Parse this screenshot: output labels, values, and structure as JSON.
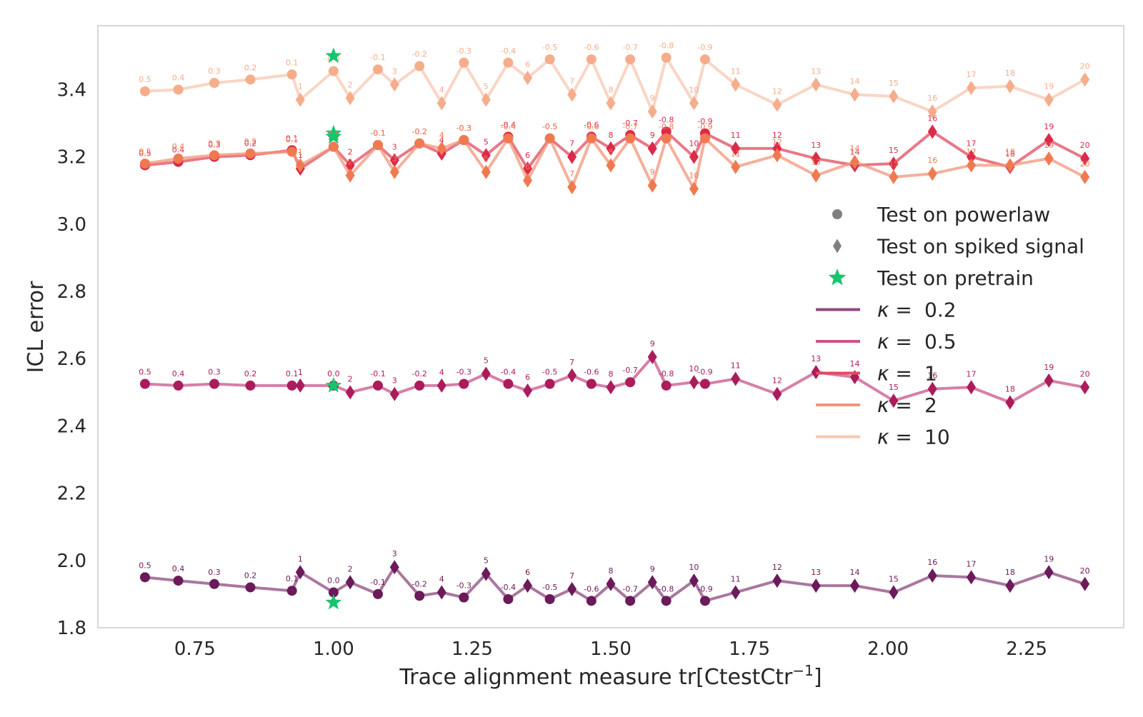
{
  "chart_data": {
    "type": "line",
    "xlabel": "Trace alignment measure tr[CtestCtr",
    "xlabel_sup": "−1",
    "xlabel_end": "]",
    "ylabel": "ICL error",
    "xlim": [
      0.575,
      2.425
    ],
    "ylim": [
      1.8,
      3.59
    ],
    "xticks": [
      0.75,
      1.0,
      1.25,
      1.5,
      1.75,
      2.0,
      2.25
    ],
    "xtick_labels": [
      "0.75",
      "1.00",
      "1.25",
      "1.50",
      "1.75",
      "2.00",
      "2.25"
    ],
    "yticks": [
      1.8,
      2.0,
      2.2,
      2.4,
      2.6,
      2.8,
      3.0,
      3.2,
      3.4
    ],
    "ytick_labels": [
      "1.8",
      "2.0",
      "2.2",
      "2.4",
      "2.6",
      "2.8",
      "3.0",
      "3.2",
      "3.4"
    ],
    "grid": false,
    "legend_position": "right",
    "legend": {
      "markers": [
        {
          "symbol": "circle",
          "label": "Test on powerlaw",
          "color": "#808080"
        },
        {
          "symbol": "diamond",
          "label": "Test on spiked signal",
          "color": "#808080"
        },
        {
          "symbol": "star",
          "label": "Test on pretrain",
          "color": "#18c46e"
        }
      ],
      "lines": [
        {
          "prefix": "κ =",
          "value": "0.2",
          "color": "#8e4a7e"
        },
        {
          "prefix": "κ =",
          "value": "0.5",
          "color": "#c9548a"
        },
        {
          "prefix": "κ =",
          "value": "1",
          "color": "#e34a5e"
        },
        {
          "prefix": "κ =",
          "value": "2",
          "color": "#f0967a"
        },
        {
          "prefix": "κ =",
          "value": "10",
          "color": "#f8c7b0"
        }
      ]
    },
    "powerlaw_labels": [
      "0.5",
      "0.4",
      "0.3",
      "0.2",
      "0.1",
      "0.0",
      "-0.1",
      "-0.2",
      "-0.3",
      "-0.4",
      "-0.5",
      "-0.6",
      "-0.7",
      "-0.8",
      "-0.9"
    ],
    "spiked_labels": [
      "1",
      "2",
      "3",
      "4",
      "5",
      "6",
      "7",
      "8",
      "9",
      "10",
      "11",
      "12",
      "13",
      "14",
      "15",
      "16",
      "17",
      "18",
      "19",
      "20"
    ],
    "powerlaw_x": [
      0.66,
      0.72,
      0.785,
      0.85,
      0.925,
      1.0,
      1.08,
      1.155,
      1.235,
      1.315,
      1.39,
      1.465,
      1.535,
      1.6,
      1.67
    ],
    "spiked_x": [
      0.94,
      1.03,
      1.11,
      1.195,
      1.275,
      1.35,
      1.43,
      1.5,
      1.575,
      1.65,
      1.725,
      1.8,
      1.87,
      1.94,
      2.01,
      2.08,
      2.15,
      2.22,
      2.29,
      2.355
    ],
    "pretrain_x": 1.0,
    "series": [
      {
        "name": "κ =  0.2",
        "color": "#8e4a7e",
        "marker_color": "#6b1a5a",
        "powerlaw_y": [
          1.95,
          1.94,
          1.93,
          1.92,
          1.91,
          1.905,
          1.9,
          1.895,
          1.89,
          1.885,
          1.885,
          1.88,
          1.88,
          1.88,
          1.88
        ],
        "spiked_y": [
          1.965,
          1.935,
          1.98,
          1.905,
          1.96,
          1.925,
          1.915,
          1.93,
          1.935,
          1.94,
          1.905,
          1.94,
          1.925,
          1.925,
          1.905,
          1.955,
          1.95,
          1.925,
          1.965,
          1.93
        ],
        "pretrain_y": 1.875
      },
      {
        "name": "κ =  0.5",
        "color": "#c9548a",
        "marker_color": "#ab1c5c",
        "powerlaw_y": [
          2.525,
          2.52,
          2.525,
          2.52,
          2.52,
          2.52,
          2.52,
          2.52,
          2.525,
          2.525,
          2.525,
          2.525,
          2.53,
          2.52,
          2.525
        ],
        "spiked_y": [
          2.52,
          2.5,
          2.495,
          2.52,
          2.555,
          2.505,
          2.55,
          2.515,
          2.605,
          2.53,
          2.54,
          2.495,
          2.56,
          2.545,
          2.475,
          2.51,
          2.515,
          2.47,
          2.535,
          2.515
        ],
        "pretrain_y": 2.52
      },
      {
        "name": "κ =  1",
        "color": "#e34a5e",
        "marker_color": "#dc2a4a",
        "powerlaw_y": [
          3.175,
          3.185,
          3.2,
          3.205,
          3.22,
          3.23,
          3.235,
          3.24,
          3.25,
          3.26,
          3.255,
          3.26,
          3.265,
          3.275,
          3.27
        ],
        "spiked_y": [
          3.165,
          3.175,
          3.19,
          3.21,
          3.205,
          3.165,
          3.2,
          3.225,
          3.225,
          3.2,
          3.225,
          3.225,
          3.195,
          3.175,
          3.18,
          3.275,
          3.2,
          3.17,
          3.25,
          3.195
        ],
        "pretrain_y": 3.27
      },
      {
        "name": "κ =  2",
        "color": "#f0967a",
        "marker_color": "#f07a50",
        "powerlaw_y": [
          3.18,
          3.195,
          3.205,
          3.21,
          3.215,
          3.23,
          3.235,
          3.24,
          3.25,
          3.255,
          3.255,
          3.255,
          3.255,
          3.255,
          3.255
        ],
        "spiked_y": [
          3.175,
          3.145,
          3.155,
          3.225,
          3.155,
          3.13,
          3.11,
          3.175,
          3.115,
          3.105,
          3.17,
          3.205,
          3.145,
          3.185,
          3.14,
          3.15,
          3.175,
          3.175,
          3.195,
          3.14
        ],
        "pretrain_y": 3.26
      },
      {
        "name": "κ =  10",
        "color": "#f8c7b0",
        "marker_color": "#f5ad8c",
        "powerlaw_y": [
          3.395,
          3.4,
          3.42,
          3.43,
          3.445,
          3.455,
          3.46,
          3.47,
          3.48,
          3.48,
          3.49,
          3.49,
          3.49,
          3.495,
          3.49
        ],
        "spiked_y": [
          3.37,
          3.375,
          3.415,
          3.36,
          3.37,
          3.435,
          3.385,
          3.36,
          3.335,
          3.36,
          3.415,
          3.355,
          3.415,
          3.385,
          3.38,
          3.335,
          3.405,
          3.41,
          3.37,
          3.43
        ],
        "pretrain_y": 3.5
      }
    ]
  }
}
